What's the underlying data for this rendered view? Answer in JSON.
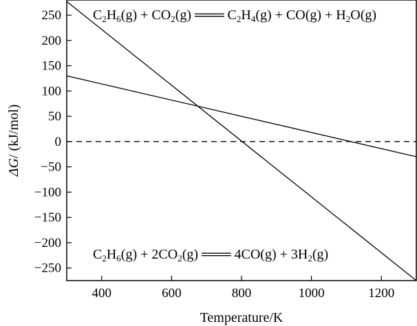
{
  "chart_data": {
    "type": "line",
    "xlabel": "Temperature/K",
    "ylabel_parts": [
      "ΔG",
      "/ (kJ/mol)"
    ],
    "xlim": [
      300,
      1300
    ],
    "ylim": [
      -275,
      280
    ],
    "xticks": [
      400,
      600,
      800,
      1000,
      1200
    ],
    "yticks": [
      250,
      200,
      150,
      100,
      50,
      0,
      -50,
      -100,
      -150,
      -200,
      -250
    ],
    "ytick_labels": [
      "250",
      "200",
      "150",
      "100",
      "50",
      "0",
      "−50",
      "−100",
      "−150",
      "−200",
      "−250"
    ],
    "grid": false,
    "series": [
      {
        "name": "C2H6(g) + CO2(g) ═ C2H4(g) + CO(g) + H2O(g)",
        "x": [
          300,
          1300
        ],
        "y": [
          130,
          -30
        ],
        "style": "solid"
      },
      {
        "name": "C2H6(g) + 2CO2(g) ═ 4CO(g) + 3H2(g)",
        "x": [
          300,
          1300
        ],
        "y": [
          277,
          -275
        ],
        "style": "solid"
      },
      {
        "name": "",
        "x": [
          300,
          1300
        ],
        "y": [
          0,
          0
        ],
        "style": "dashed"
      }
    ],
    "annotations": [
      {
        "position": "top",
        "parts": [
          [
            "C",
            ""
          ],
          [
            "2",
            "sub"
          ],
          [
            "H",
            ""
          ],
          [
            "6",
            "sub"
          ],
          [
            "(g) + CO",
            ""
          ],
          [
            "2",
            "sub"
          ],
          [
            "(g) ═══ C",
            ""
          ],
          [
            "2",
            "sub"
          ],
          [
            "H",
            ""
          ],
          [
            "4",
            "sub"
          ],
          [
            "(g) + CO(g) + H",
            ""
          ],
          [
            "2",
            "sub"
          ],
          [
            "O(g)",
            ""
          ]
        ]
      },
      {
        "position": "bottom",
        "parts": [
          [
            "C",
            ""
          ],
          [
            "2",
            "sub"
          ],
          [
            "H",
            ""
          ],
          [
            "6",
            "sub"
          ],
          [
            "(g) + 2CO",
            ""
          ],
          [
            "2",
            "sub"
          ],
          [
            "(g) ═══ 4CO(g) + 3H",
            ""
          ],
          [
            "2",
            "sub"
          ],
          [
            "(g)",
            ""
          ]
        ]
      }
    ],
    "colors": {
      "line": "#000000",
      "background": "#ffffff"
    }
  }
}
